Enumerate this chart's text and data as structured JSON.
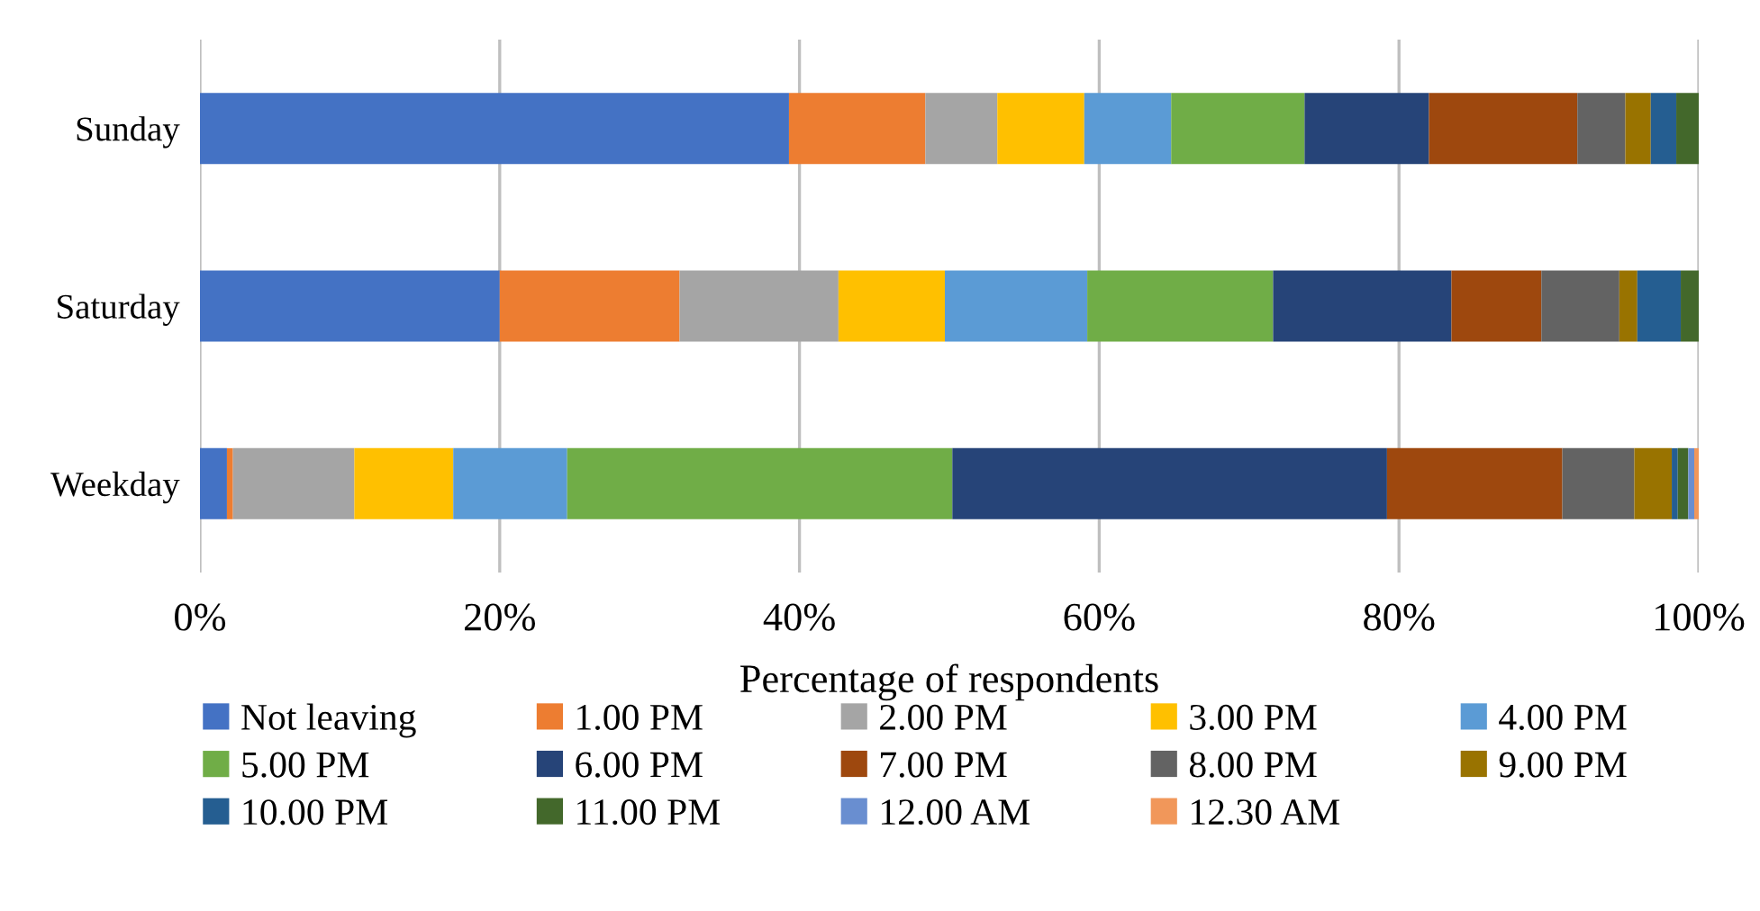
{
  "chart_data": {
    "type": "bar",
    "orientation": "horizontal",
    "stacked": true,
    "xlabel": "Percentage of respondents",
    "categories": [
      "Sunday",
      "Saturday",
      "Weekday"
    ],
    "series": [
      {
        "name": "Not leaving",
        "color": "#4472c4",
        "values": [
          39.3,
          20.0,
          1.8
        ]
      },
      {
        "name": "1.00 PM",
        "color": "#ed7d31",
        "values": [
          9.1,
          12.0,
          0.4
        ]
      },
      {
        "name": "2.00 PM",
        "color": "#a5a5a5",
        "values": [
          4.8,
          10.6,
          8.1
        ]
      },
      {
        "name": "3.00 PM",
        "color": "#ffc000",
        "values": [
          5.8,
          7.1,
          6.6
        ]
      },
      {
        "name": "4.00 PM",
        "color": "#5b9bd5",
        "values": [
          5.8,
          9.5,
          7.6
        ]
      },
      {
        "name": "5.00 PM",
        "color": "#70ad47",
        "values": [
          8.9,
          12.4,
          25.7
        ]
      },
      {
        "name": "6.00 PM",
        "color": "#264478",
        "values": [
          8.3,
          11.9,
          29.0
        ]
      },
      {
        "name": "7.00 PM",
        "color": "#9e480e",
        "values": [
          9.9,
          6.0,
          11.7
        ]
      },
      {
        "name": "8.00 PM",
        "color": "#636363",
        "values": [
          3.2,
          5.2,
          4.8
        ]
      },
      {
        "name": "9.00 PM",
        "color": "#997300",
        "values": [
          1.7,
          1.2,
          2.5
        ]
      },
      {
        "name": "10.00 PM",
        "color": "#255e91",
        "values": [
          1.7,
          2.9,
          0.4
        ]
      },
      {
        "name": "11.00 PM",
        "color": "#43682b",
        "values": [
          1.5,
          1.2,
          0.7
        ]
      },
      {
        "name": "12.00 AM",
        "color": "#698ed0",
        "values": [
          0,
          0,
          0.4
        ]
      },
      {
        "name": "12.30 AM",
        "color": "#f1975a",
        "values": [
          0,
          0,
          0.3
        ]
      }
    ],
    "xlim": [
      0,
      100
    ],
    "xticks": [
      {
        "value": 0,
        "label": "0%"
      },
      {
        "value": 20,
        "label": "20%"
      },
      {
        "value": 40,
        "label": "40%"
      },
      {
        "value": 60,
        "label": "60%"
      },
      {
        "value": 80,
        "label": "80%"
      },
      {
        "value": 100,
        "label": "100%"
      }
    ],
    "grid": "x",
    "legend": "bottom"
  }
}
